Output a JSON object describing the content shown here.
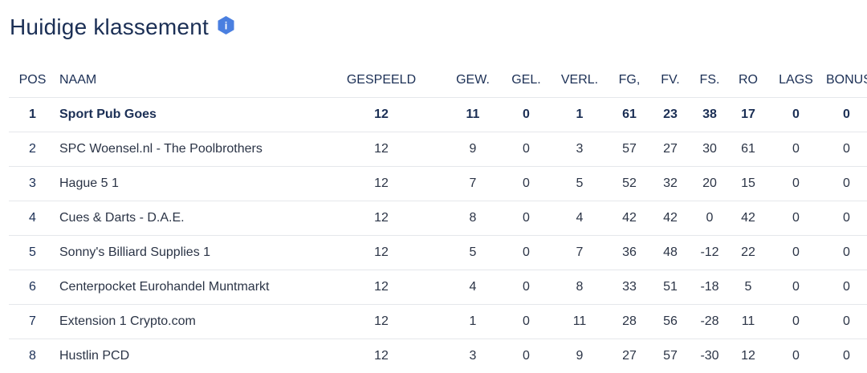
{
  "page": {
    "title": "Huidige klassement",
    "info_icon_label": "i"
  },
  "standings": {
    "columns": [
      "POS",
      "NAAM",
      "GESPEELD",
      "GEW.",
      "GEL.",
      "VERL.",
      "FG,",
      "FV.",
      "FS.",
      "RO",
      "LAGS",
      "BONUS"
    ],
    "rows": [
      [
        "1",
        "Sport Pub Goes",
        "12",
        "11",
        "0",
        "1",
        "61",
        "23",
        "38",
        "17",
        "0",
        "0"
      ],
      [
        "2",
        "SPC Woensel.nl - The Poolbrothers",
        "12",
        "9",
        "0",
        "3",
        "57",
        "27",
        "30",
        "61",
        "0",
        "0"
      ],
      [
        "3",
        "Hague 5 1",
        "12",
        "7",
        "0",
        "5",
        "52",
        "32",
        "20",
        "15",
        "0",
        "0"
      ],
      [
        "4",
        "Cues & Darts - D.A.E.",
        "12",
        "8",
        "0",
        "4",
        "42",
        "42",
        "0",
        "42",
        "0",
        "0"
      ],
      [
        "5",
        "Sonny's Billiard Supplies 1",
        "12",
        "5",
        "0",
        "7",
        "36",
        "48",
        "-12",
        "22",
        "0",
        "0"
      ],
      [
        "6",
        "Centerpocket Eurohandel Muntmarkt",
        "12",
        "4",
        "0",
        "8",
        "33",
        "51",
        "-18",
        "5",
        "0",
        "0"
      ],
      [
        "7",
        "Extension 1 Crypto.com",
        "12",
        "1",
        "0",
        "11",
        "28",
        "56",
        "-28",
        "11",
        "0",
        "0"
      ],
      [
        "8",
        "Hustlin PCD",
        "12",
        "3",
        "0",
        "9",
        "27",
        "57",
        "-30",
        "12",
        "0",
        "0"
      ]
    ]
  },
  "colors": {
    "heading": "#1b2f55",
    "info_badge": "#4a7fe0",
    "row_divider": "#e5e7eb"
  }
}
